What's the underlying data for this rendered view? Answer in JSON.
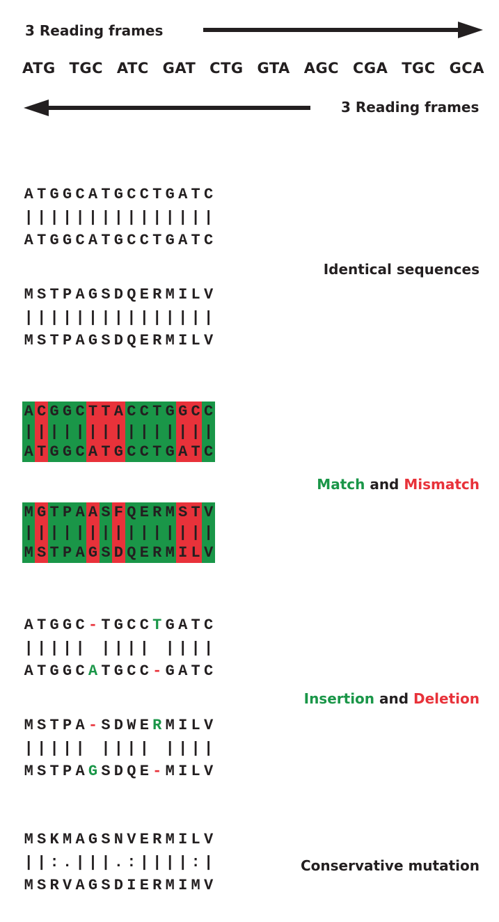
{
  "header": {
    "forward_label": "3 Reading frames",
    "reverse_label": "3 Reading frames",
    "codons": [
      "ATG",
      "TGC",
      "ATC",
      "GAT",
      "CTG",
      "GTA",
      "AGC",
      "CGA",
      "TGC",
      "GCA"
    ]
  },
  "colors": {
    "match": "#1a9648",
    "mismatch": "#e8323a",
    "text": "#231f20"
  },
  "labels": {
    "identical": "Identical sequences",
    "match_word": "Match",
    "and1": " and ",
    "mismatch_word": "Mismatch",
    "insertion_word": "Insertion",
    "and2": " and ",
    "deletion_word": "Deletion",
    "conservative": "Conservative mutation"
  },
  "alignments": [
    {
      "id": "dna-identical",
      "top": "ATGGCATGCCTGATC",
      "mid": "|||||||||||||||",
      "bot": "ATGGCATGCCTGATC"
    },
    {
      "id": "protein-identical",
      "top": "MSTPAGSDQERMILV",
      "mid": "|||||||||||||||",
      "bot": "MSTPAGSDQERMILV"
    },
    {
      "id": "dna-mismatch",
      "top": "ACGGCTTACCTGGCC",
      "mid": "|||||||||||||||",
      "bot": "ATGGCATGCCTGATC",
      "cell_state": "MRMMMRRRMMMMRRM"
    },
    {
      "id": "protein-mismatch",
      "top": "MGTPAASFQERMSTV",
      "mid": "|||||||||||||||",
      "bot": "MSTPAGSDQERMILV",
      "cell_state": "MRMMMRMRMMMMRRM"
    },
    {
      "id": "dna-indel",
      "top": "ATGGC-TGCCTGATC",
      "mid": "||||| |||| ||||",
      "bot": "ATGGCATGCC-GATC",
      "top_colors": ".....r....g....",
      "bot_colors": ".....g....r...."
    },
    {
      "id": "protein-indel",
      "top": "MSTPA-SDWERMILV",
      "mid": "||||| |||| ||||",
      "bot": "MSTPAGSDQE-MILV",
      "top_colors": ".....r....g....",
      "bot_colors": ".....g....r...."
    },
    {
      "id": "protein-conservative",
      "top": "MSKMAGSNVERMILV",
      "mid": "||:.|||.:||||:|",
      "bot": "MSRVAGSDIERMIMV"
    }
  ]
}
